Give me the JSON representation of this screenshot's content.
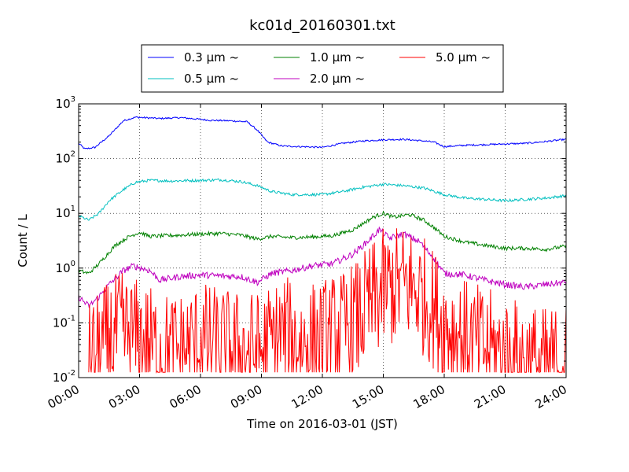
{
  "chart_data": {
    "type": "line",
    "title": "kc01d_20160301.txt",
    "xlabel": "Time on 2016-03-01 (JST)",
    "ylabel": "Count / L",
    "y_scale": "log",
    "ylim": [
      0.01,
      1000
    ],
    "xlim": [
      "00:00",
      "24:00"
    ],
    "grid": true,
    "legend_position": "top-center",
    "x_ticks": [
      "00:00",
      "03:00",
      "06:00",
      "09:00",
      "12:00",
      "15:00",
      "18:00",
      "21:00",
      "24:00"
    ],
    "y_ticks": [
      {
        "base": "10",
        "exp": "-2"
      },
      {
        "base": "10",
        "exp": "-1"
      },
      {
        "base": "10",
        "exp": "0"
      },
      {
        "base": "10",
        "exp": "1"
      },
      {
        "base": "10",
        "exp": "2"
      },
      {
        "base": "10",
        "exp": "3"
      }
    ],
    "series": [
      {
        "name": "0.3 μm ~",
        "color": "#0000ff",
        "noise": 0.015,
        "points": [
          [
            0,
            190
          ],
          [
            0.3,
            150
          ],
          [
            0.8,
            160
          ],
          [
            1.5,
            260
          ],
          [
            2.2,
            490
          ],
          [
            2.8,
            570
          ],
          [
            3.2,
            560
          ],
          [
            4,
            540
          ],
          [
            5,
            560
          ],
          [
            5.8,
            530
          ],
          [
            6.5,
            500
          ],
          [
            7.5,
            490
          ],
          [
            8.3,
            470
          ],
          [
            8.8,
            330
          ],
          [
            9.3,
            200
          ],
          [
            10,
            170
          ],
          [
            11,
            165
          ],
          [
            12,
            160
          ],
          [
            13,
            190
          ],
          [
            14,
            210
          ],
          [
            15,
            220
          ],
          [
            16,
            225
          ],
          [
            17,
            210
          ],
          [
            17.5,
            200
          ],
          [
            18,
            165
          ],
          [
            19,
            175
          ],
          [
            20,
            180
          ],
          [
            21,
            185
          ],
          [
            22,
            190
          ],
          [
            23,
            205
          ],
          [
            24,
            225
          ]
        ]
      },
      {
        "name": "0.5 μm ~",
        "color": "#00bfbf",
        "noise": 0.025,
        "points": [
          [
            0,
            9
          ],
          [
            0.5,
            7.5
          ],
          [
            1,
            10
          ],
          [
            1.5,
            17
          ],
          [
            2.2,
            27
          ],
          [
            2.8,
            37
          ],
          [
            3.5,
            40
          ],
          [
            4.5,
            39
          ],
          [
            6,
            40
          ],
          [
            7,
            41
          ],
          [
            8,
            38
          ],
          [
            8.8,
            32
          ],
          [
            9.5,
            25
          ],
          [
            10.5,
            22
          ],
          [
            12,
            22
          ],
          [
            13,
            25
          ],
          [
            14,
            30
          ],
          [
            15,
            34
          ],
          [
            16,
            32
          ],
          [
            17,
            29
          ],
          [
            18,
            22
          ],
          [
            19,
            19
          ],
          [
            20,
            18
          ],
          [
            21,
            17
          ],
          [
            22,
            18
          ],
          [
            23,
            19
          ],
          [
            24,
            21
          ]
        ]
      },
      {
        "name": "1.0 μm ~",
        "color": "#008000",
        "noise": 0.035,
        "points": [
          [
            0,
            0.9
          ],
          [
            0.5,
            0.8
          ],
          [
            1,
            1.2
          ],
          [
            1.8,
            2.6
          ],
          [
            2.5,
            3.8
          ],
          [
            3,
            4.5
          ],
          [
            3.5,
            3.8
          ],
          [
            5,
            4
          ],
          [
            6,
            4.2
          ],
          [
            7,
            4.3
          ],
          [
            8,
            4
          ],
          [
            8.8,
            3.4
          ],
          [
            9.5,
            3.8
          ],
          [
            10.5,
            3.6
          ],
          [
            11.5,
            3.7
          ],
          [
            12.5,
            3.9
          ],
          [
            13.5,
            5
          ],
          [
            14.5,
            8.5
          ],
          [
            15,
            10
          ],
          [
            15.5,
            8.5
          ],
          [
            16.3,
            9.5
          ],
          [
            17,
            7.5
          ],
          [
            17.5,
            5.5
          ],
          [
            18,
            3.8
          ],
          [
            19,
            3
          ],
          [
            20,
            2.6
          ],
          [
            21,
            2.3
          ],
          [
            22,
            2.3
          ],
          [
            23,
            2.2
          ],
          [
            24,
            2.5
          ]
        ]
      },
      {
        "name": "2.0 μm ~",
        "color": "#bf00bf",
        "noise": 0.06,
        "points": [
          [
            0,
            0.3
          ],
          [
            0.5,
            0.2
          ],
          [
            1,
            0.3
          ],
          [
            1.5,
            0.5
          ],
          [
            2.2,
            0.9
          ],
          [
            2.7,
            1.1
          ],
          [
            3.5,
            0.9
          ],
          [
            4,
            0.6
          ],
          [
            5,
            0.7
          ],
          [
            6,
            0.75
          ],
          [
            7,
            0.72
          ],
          [
            8,
            0.7
          ],
          [
            8.8,
            0.55
          ],
          [
            9.5,
            0.8
          ],
          [
            10.5,
            0.9
          ],
          [
            11.5,
            1.1
          ],
          [
            12.5,
            1.2
          ],
          [
            13.5,
            1.8
          ],
          [
            14.2,
            3
          ],
          [
            14.8,
            5
          ],
          [
            15.3,
            3.5
          ],
          [
            16,
            4.2
          ],
          [
            16.8,
            3
          ],
          [
            17.5,
            1.5
          ],
          [
            18,
            0.8
          ],
          [
            19,
            0.75
          ],
          [
            20,
            0.6
          ],
          [
            21,
            0.5
          ],
          [
            22,
            0.45
          ],
          [
            23,
            0.5
          ],
          [
            24,
            0.55
          ]
        ]
      },
      {
        "name": "5.0 μm ~",
        "color": "#ff0000",
        "noise": 0.28,
        "floor": 0.0125,
        "points": [
          [
            0.5,
            0.018
          ],
          [
            1,
            0.03
          ],
          [
            2,
            0.07
          ],
          [
            3,
            0.05
          ],
          [
            4,
            0.03
          ],
          [
            5,
            0.03
          ],
          [
            6,
            0.045
          ],
          [
            7,
            0.035
          ],
          [
            8,
            0.03
          ],
          [
            9,
            0.03
          ],
          [
            10,
            0.06
          ],
          [
            11,
            0.04
          ],
          [
            12,
            0.05
          ],
          [
            13,
            0.07
          ],
          [
            13.8,
            0.12
          ],
          [
            14.5,
            0.25
          ],
          [
            15,
            0.4
          ],
          [
            15.5,
            0.45
          ],
          [
            16,
            0.5
          ],
          [
            16.5,
            0.45
          ],
          [
            17,
            0.3
          ],
          [
            17.5,
            0.18
          ],
          [
            18,
            0.09
          ],
          [
            19,
            0.05
          ],
          [
            20,
            0.035
          ],
          [
            21,
            0.025
          ],
          [
            22,
            0.02
          ],
          [
            23,
            0.015
          ],
          [
            24,
            0.02
          ]
        ]
      }
    ]
  }
}
